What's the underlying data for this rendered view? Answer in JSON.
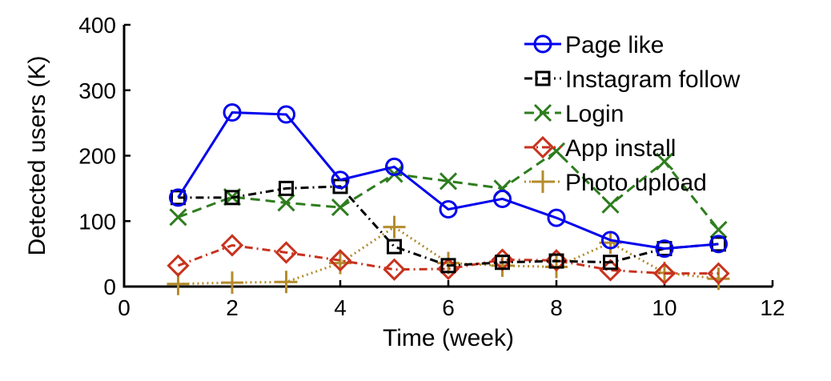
{
  "chart_data": {
    "type": "line",
    "title": "",
    "xlabel": "Time (week)",
    "ylabel": "Detected users (K)",
    "xlim": [
      0,
      12
    ],
    "ylim": [
      0,
      400
    ],
    "xticks": [
      0,
      2,
      4,
      6,
      8,
      10,
      12
    ],
    "yticks": [
      0,
      100,
      200,
      300,
      400
    ],
    "grid": false,
    "legend_position": "top-right",
    "x": [
      1,
      2,
      3,
      4,
      5,
      6,
      7,
      8,
      9,
      10,
      11
    ],
    "series": [
      {
        "name": "Page like",
        "color": "#0000ee",
        "marker": "circle",
        "dash": "solid",
        "values": [
          136,
          266,
          263,
          163,
          183,
          118,
          134,
          105,
          71,
          58,
          65
        ]
      },
      {
        "name": "Instagram follow",
        "color": "#000000",
        "marker": "square",
        "dash": "dashdot",
        "values": [
          136,
          136,
          150,
          153,
          61,
          32,
          37,
          39,
          37,
          58,
          65
        ]
      },
      {
        "name": "Login",
        "color": "#2e7d1e",
        "marker": "x",
        "dash": "dashed",
        "values": [
          106,
          137,
          128,
          121,
          172,
          161,
          150,
          207,
          125,
          191,
          87
        ]
      },
      {
        "name": "App install",
        "color": "#c8321e",
        "marker": "diamond",
        "dash": "dashdot",
        "values": [
          32,
          63,
          52,
          40,
          26,
          27,
          41,
          40,
          25,
          20,
          20
        ]
      },
      {
        "name": "Photo upload",
        "color": "#b48c2d",
        "marker": "plus",
        "dash": "dotted",
        "values": [
          4,
          6,
          7,
          36,
          91,
          36,
          32,
          30,
          67,
          21,
          12
        ]
      }
    ]
  }
}
